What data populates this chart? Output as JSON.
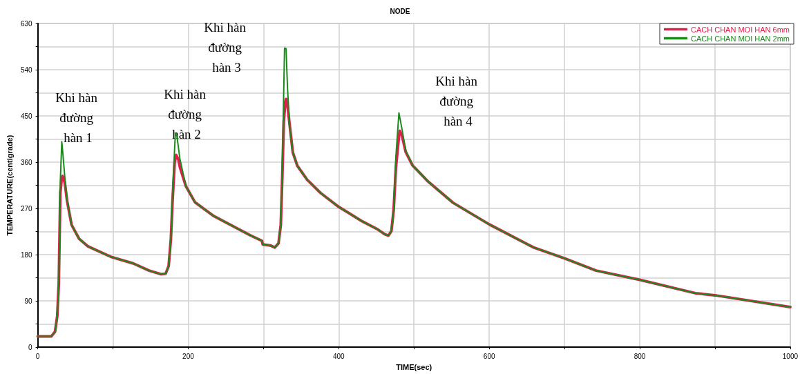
{
  "chart_data": {
    "type": "line",
    "title": "NODE",
    "xlabel": "TIME(sec)",
    "ylabel": "TEMPERATURE(centigrade)",
    "xlim": [
      0,
      1000
    ],
    "xticks": [
      0,
      {
        "value": 100,
        "label": null
      },
      200,
      {
        "value": 300,
        "label": null
      },
      400,
      {
        "value": 500,
        "label": null
      },
      600,
      {
        "value": 700,
        "label": null
      },
      800,
      {
        "value": 900,
        "label": null
      },
      1000
    ],
    "ylim": [
      0,
      630
    ],
    "yticks": [
      0,
      {
        "value": 45,
        "label": null
      },
      90,
      {
        "value": 135,
        "label": null
      },
      180,
      {
        "value": 225,
        "label": null
      },
      270,
      {
        "value": 315,
        "label": null
      },
      360,
      {
        "value": 405,
        "label": null
      },
      450,
      {
        "value": 495,
        "label": null
      },
      540,
      {
        "value": 585,
        "label": null
      },
      630
    ],
    "grid": true,
    "legend": "top right",
    "marker": "none",
    "line_style": "solid",
    "annotations": [
      "Khi hàn đường hàn 1",
      "Khi hàn đường hàn 2",
      "Khi hàn đường hàn 3",
      "Khi hàn đường hàn 4"
    ],
    "series": [
      {
        "name": "CACH CHAN MOI HAN 6mm",
        "color": "#e0204a",
        "x": [
          0,
          18,
          23,
          26,
          28,
          29,
          30,
          32,
          33,
          36,
          39,
          45,
          55,
          67,
          97,
          127,
          148,
          164,
          170,
          174,
          177,
          179,
          182,
          184,
          187,
          189,
          197,
          209,
          233,
          282,
          298,
          299,
          309,
          315,
          320,
          323,
          325,
          327,
          329,
          330,
          332,
          335,
          339,
          345,
          358,
          376,
          400,
          430,
          452,
          461,
          466,
          470,
          473,
          476,
          480,
          481,
          484,
          489,
          498,
          519,
          552,
          600,
          659,
          700,
          742,
          800,
          874,
          900,
          1000
        ],
        "values": [
          21,
          21,
          30,
          61,
          123,
          211,
          300,
          330,
          333,
          320,
          285,
          238,
          211,
          196,
          176,
          163,
          149,
          142,
          143,
          158,
          211,
          280,
          360,
          374,
          365,
          350,
          313,
          282,
          256,
          218,
          207,
          200,
          198,
          194,
          202,
          238,
          330,
          440,
          477,
          483,
          470,
          430,
          379,
          353,
          326,
          300,
          273,
          246,
          229,
          220,
          217,
          226,
          267,
          350,
          410,
          421,
          412,
          380,
          354,
          322,
          281,
          239,
          194,
          173,
          149,
          131,
          105,
          101,
          78
        ]
      },
      {
        "name": "CACH CHAN MOI HAN 2mm",
        "color": "#1a8a1a",
        "x": [
          0,
          18,
          23,
          26,
          28,
          29,
          30,
          32,
          33,
          36,
          39,
          45,
          55,
          67,
          97,
          127,
          148,
          164,
          170,
          174,
          177,
          179,
          182,
          183,
          185,
          189,
          197,
          209,
          233,
          282,
          298,
          299,
          309,
          315,
          320,
          323,
          325,
          327,
          328,
          330,
          332,
          335,
          339,
          345,
          358,
          376,
          400,
          430,
          452,
          461,
          466,
          470,
          473,
          476,
          480,
          484,
          489,
          498,
          519,
          552,
          600,
          659,
          700,
          742,
          800,
          874,
          900,
          1000
        ],
        "values": [
          21,
          21,
          30,
          61,
          123,
          211,
          322,
          400,
          384,
          331,
          287,
          238,
          211,
          196,
          176,
          163,
          149,
          142,
          143,
          158,
          211,
          291,
          389,
          416,
          411,
          366,
          313,
          282,
          256,
          218,
          207,
          200,
          198,
          194,
          202,
          238,
          348,
          503,
          582,
          581,
          503,
          424,
          379,
          353,
          326,
          300,
          273,
          246,
          229,
          220,
          217,
          226,
          267,
          372,
          456,
          425,
          383,
          354,
          322,
          281,
          239,
          194,
          173,
          149,
          131,
          105,
          101,
          78
        ]
      }
    ]
  }
}
